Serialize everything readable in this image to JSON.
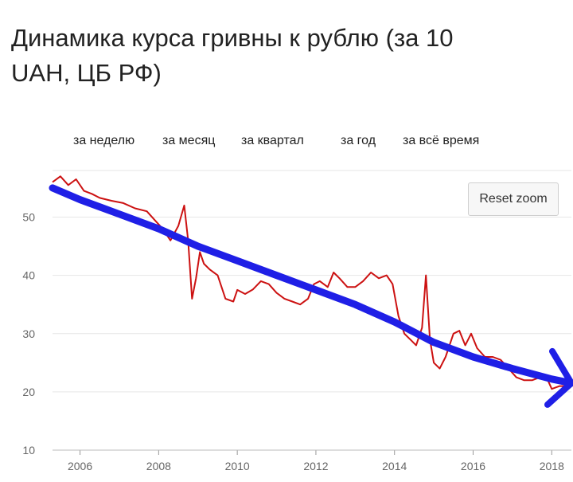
{
  "title": "Динамика курса гривны к рублю (за 10 UAH, ЦБ РФ)",
  "range_buttons": [
    "за неделю",
    "за месяц",
    "за квартал",
    "за год",
    "за всё время"
  ],
  "reset_zoom_label": "Reset zoom",
  "colors": {
    "series": "#cc1111",
    "trend": "#1f1fe6",
    "grid": "#e6e6e6",
    "axis_text": "#666666"
  },
  "chart_data": {
    "type": "line",
    "title": "Динамика курса гривны к рублю (за 10 UAH, ЦБ РФ)",
    "xlabel": "",
    "ylabel": "",
    "xlim": [
      2005.3,
      2018.5
    ],
    "ylim": [
      10,
      58
    ],
    "x_ticks": [
      2006,
      2008,
      2010,
      2012,
      2014,
      2016,
      2018
    ],
    "y_ticks": [
      10,
      20,
      30,
      40,
      50
    ],
    "grid": true,
    "legend": "none",
    "series": [
      {
        "x": [
          2005.3,
          2005.5,
          2005.7,
          2005.9,
          2006.1,
          2006.3,
          2006.5,
          2006.8,
          2007.1,
          2007.4,
          2007.7,
          2007.9,
          2008.1,
          2008.3,
          2008.5,
          2008.65,
          2008.75,
          2008.85,
          2008.95,
          2009.05,
          2009.15,
          2009.3,
          2009.5,
          2009.7,
          2009.9,
          2010.0,
          2010.2,
          2010.4,
          2010.6,
          2010.8,
          2011.0,
          2011.2,
          2011.4,
          2011.6,
          2011.8,
          2011.95,
          2012.1,
          2012.3,
          2012.45,
          2012.6,
          2012.8,
          2013.0,
          2013.2,
          2013.4,
          2013.6,
          2013.8,
          2013.95,
          2014.1,
          2014.25,
          2014.4,
          2014.55,
          2014.7,
          2014.8,
          2014.9,
          2015.0,
          2015.15,
          2015.3,
          2015.5,
          2015.65,
          2015.8,
          2015.95,
          2016.1,
          2016.3,
          2016.5,
          2016.7,
          2016.9,
          2017.1,
          2017.3,
          2017.5,
          2017.7,
          2017.9,
          2018.0,
          2018.2,
          2018.4
        ],
        "y": [
          56,
          57,
          55.5,
          56.5,
          54.5,
          54,
          53.3,
          52.8,
          52.4,
          51.5,
          51,
          49.5,
          48,
          46,
          48.5,
          52,
          46,
          36,
          39.5,
          44,
          42,
          41,
          40,
          36,
          35.5,
          37.5,
          36.8,
          37.6,
          39,
          38.5,
          37,
          36,
          35.5,
          35,
          36,
          38.5,
          39,
          38,
          40.5,
          39.5,
          38,
          38,
          39,
          40.5,
          39.5,
          40,
          38.5,
          33,
          30,
          29,
          28,
          31,
          40,
          29,
          25,
          24,
          26,
          30,
          30.5,
          28,
          30,
          27.5,
          26,
          26,
          25.5,
          24,
          22.5,
          22,
          22,
          22.5,
          22,
          20.5,
          21,
          21
        ]
      },
      {
        "x": [
          2005.3,
          2006,
          2007,
          2008,
          2009,
          2010,
          2011,
          2012,
          2013,
          2014,
          2015,
          2016,
          2017,
          2018,
          2018.5
        ],
        "y": [
          55,
          53,
          50.5,
          48,
          45,
          42.5,
          40,
          37.5,
          35,
          32,
          28.5,
          26,
          24,
          22.2,
          21.5
        ]
      }
    ]
  }
}
